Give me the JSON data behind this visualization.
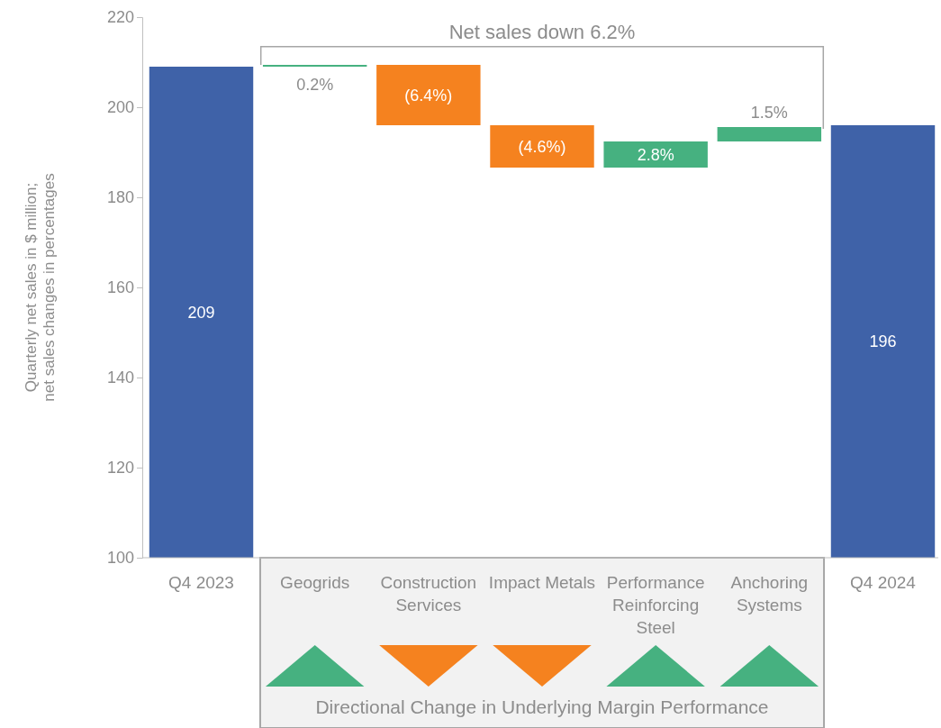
{
  "chart_data": {
    "type": "bar",
    "ylabel": "Quarterly net sales in $ million;\nnet sales changes in percentages",
    "categories": [
      "Q4 2023",
      "Geogrids",
      "Construction Services",
      "Impact Metals",
      "Performance Reinforcing Steel",
      "Anchoring Systems",
      "Q4 2024"
    ],
    "values": [
      209,
      0.4,
      -13.4,
      -9.4,
      5.8,
      3.2,
      196
    ],
    "base": [
      null,
      209,
      209.4,
      196,
      186.6,
      192.4,
      null
    ],
    "colors": [
      "#3f62a8",
      "#46b180",
      "#f5821f",
      "#f5821f",
      "#46b180",
      "#46b180",
      "#3f62a8"
    ],
    "value_labels": [
      "209",
      null,
      null,
      null,
      null,
      null,
      "196"
    ],
    "ylim": [
      100,
      220
    ],
    "yticks": [
      100,
      120,
      140,
      160,
      180,
      200,
      220
    ],
    "grid": false,
    "annotations": [
      "Net sales down 6.2%",
      "Directional Change in Underlying Margin Performance",
      {
        "text": "0.2%",
        "x": "Geogrids",
        "y": 209.4
      },
      {
        "text": "(6.4%)",
        "x": "Construction Services",
        "y": 196
      },
      {
        "text": "(4.6%)",
        "x": "Impact Metals",
        "y": 186.6
      },
      {
        "text": "2.8%",
        "x": "Performance Reinforcing Steel",
        "y": 192.4
      },
      {
        "text": "1.5%",
        "x": "Anchoring Systems",
        "y": 195.6
      }
    ]
  }
}
